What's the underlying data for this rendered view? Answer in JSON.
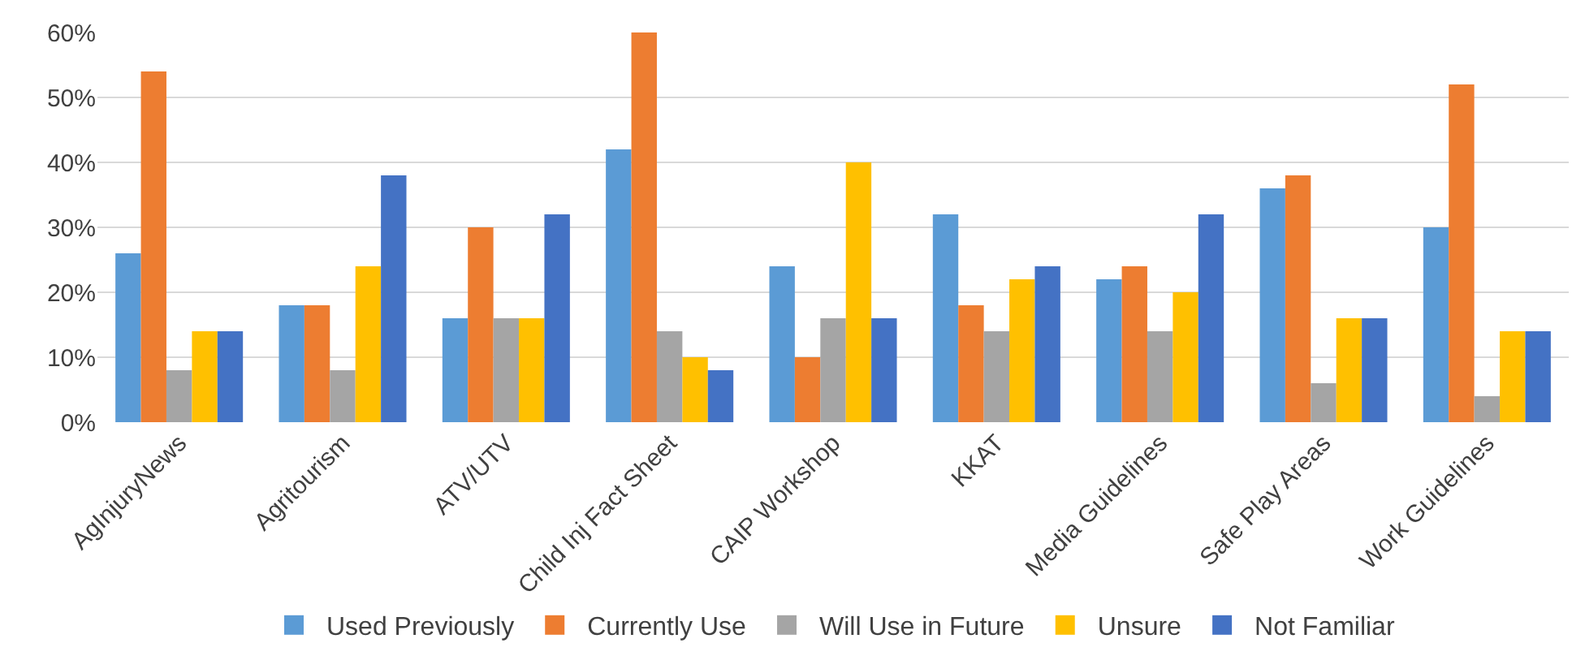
{
  "chart_data": {
    "type": "bar",
    "categories": [
      "AgInjuryNews",
      "Agritourism",
      "ATV/UTV",
      "Child Inj Fact Sheet",
      "CAIP Workshop",
      "KKAT",
      "Media Guidelines",
      "Safe Play Areas",
      "Work Guidelines"
    ],
    "series": [
      {
        "name": "Used Previously",
        "color": "#5b9bd5",
        "values": [
          26,
          18,
          16,
          42,
          24,
          32,
          22,
          36,
          30
        ]
      },
      {
        "name": "Currently Use",
        "color": "#ed7d31",
        "values": [
          54,
          18,
          30,
          60,
          10,
          18,
          24,
          38,
          52
        ]
      },
      {
        "name": "Will Use in Future",
        "color": "#a5a5a5",
        "values": [
          8,
          8,
          16,
          14,
          16,
          14,
          14,
          6,
          4
        ]
      },
      {
        "name": "Unsure",
        "color": "#ffc000",
        "values": [
          14,
          24,
          16,
          10,
          40,
          22,
          20,
          16,
          14
        ]
      },
      {
        "name": "Not Familiar",
        "color": "#4472c4",
        "values": [
          14,
          38,
          32,
          8,
          16,
          24,
          32,
          16,
          14
        ]
      }
    ],
    "ylim": [
      0,
      60
    ],
    "yticks": [
      {
        "value": 0,
        "label": "0%"
      },
      {
        "value": 10,
        "label": "10%"
      },
      {
        "value": 20,
        "label": "20%"
      },
      {
        "value": 30,
        "label": "30%"
      },
      {
        "value": 40,
        "label": "40%"
      },
      {
        "value": 50,
        "label": "50%"
      },
      {
        "value": 60,
        "label": "60%"
      }
    ],
    "grid": "y",
    "legend": "bottom"
  }
}
